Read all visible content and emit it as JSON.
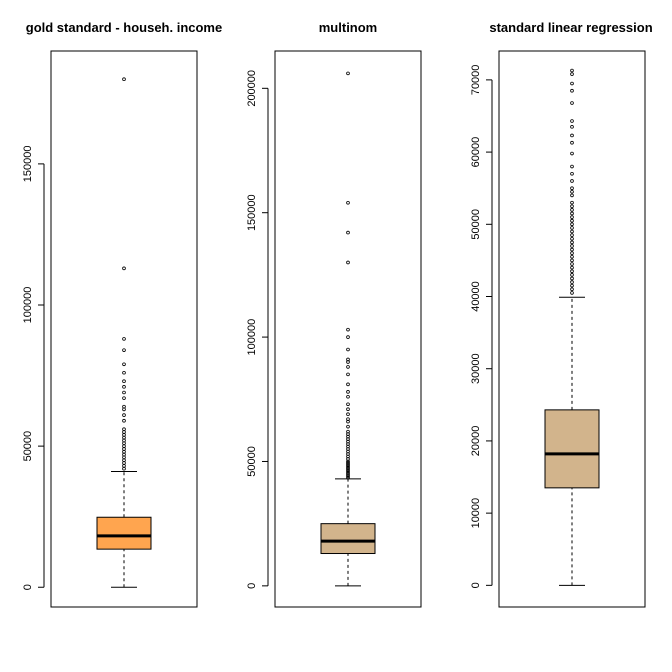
{
  "chart_data": [
    {
      "type": "boxplot",
      "title": "gold standard - househ. income",
      "fill": "#FFA54F",
      "ylim": [
        -7000,
        190000
      ],
      "yticks": [
        0,
        50000,
        100000,
        150000
      ],
      "ytick_labels": [
        "0",
        "50000",
        "100000",
        "150000"
      ],
      "stats": {
        "min": 0,
        "q1": 13500,
        "median": 18200,
        "q3": 24800,
        "max": 41000
      },
      "outliers": [
        180000,
        113000,
        88000,
        84000,
        79000,
        76000,
        73000,
        71000,
        69000,
        67000,
        64000,
        63000,
        61000,
        59000,
        56000,
        55000,
        54000,
        53000,
        52000,
        51000,
        50000,
        49000,
        48000,
        47000,
        46000,
        45000,
        44000,
        43000,
        42000
      ]
    },
    {
      "type": "boxplot",
      "title": "multinom",
      "fill": "#D2B48C",
      "ylim": [
        -8500,
        215000
      ],
      "yticks": [
        0,
        50000,
        100000,
        150000,
        200000
      ],
      "ytick_labels": [
        "0",
        "50000",
        "100000",
        "150000",
        "200000"
      ],
      "stats": {
        "min": 0,
        "q1": 13000,
        "median": 18000,
        "q3": 25000,
        "max": 43000
      },
      "outliers": [
        206000,
        154000,
        142000,
        130000,
        103000,
        100000,
        95000,
        91000,
        90000,
        88000,
        85000,
        81000,
        78000,
        76000,
        73000,
        71000,
        69000,
        67000,
        66000,
        64000,
        62000,
        61000,
        60000,
        59000,
        58000,
        57000,
        56000,
        55000,
        54000,
        53000,
        52000,
        51000,
        50000,
        49500,
        49000,
        48500,
        48000,
        47500,
        47000,
        46500,
        46000,
        45500,
        45000,
        44500,
        44000,
        43500
      ]
    },
    {
      "type": "boxplot",
      "title": "standard linear regression",
      "fill": "#D2B48C",
      "ylim": [
        -3000,
        74000
      ],
      "yticks": [
        0,
        10000,
        20000,
        30000,
        40000,
        50000,
        60000,
        70000
      ],
      "ytick_labels": [
        "0",
        "10000",
        "20000",
        "30000",
        "40000",
        "50000",
        "60000",
        "70000"
      ],
      "stats": {
        "min": 0,
        "q1": 13500,
        "median": 18200,
        "q3": 24300,
        "max": 39900
      },
      "outliers": [
        71300,
        70800,
        69500,
        68500,
        66800,
        64300,
        63500,
        62300,
        61300,
        59800,
        58000,
        57000,
        56000,
        55000,
        54500,
        54000,
        53000,
        52500,
        52000,
        51500,
        51000,
        50500,
        50000,
        49500,
        49000,
        48500,
        48000,
        47500,
        47000,
        46500,
        46000,
        45500,
        45000,
        44500,
        44000,
        43500,
        43000,
        42500,
        42000,
        41500,
        41000,
        40500
      ]
    }
  ]
}
